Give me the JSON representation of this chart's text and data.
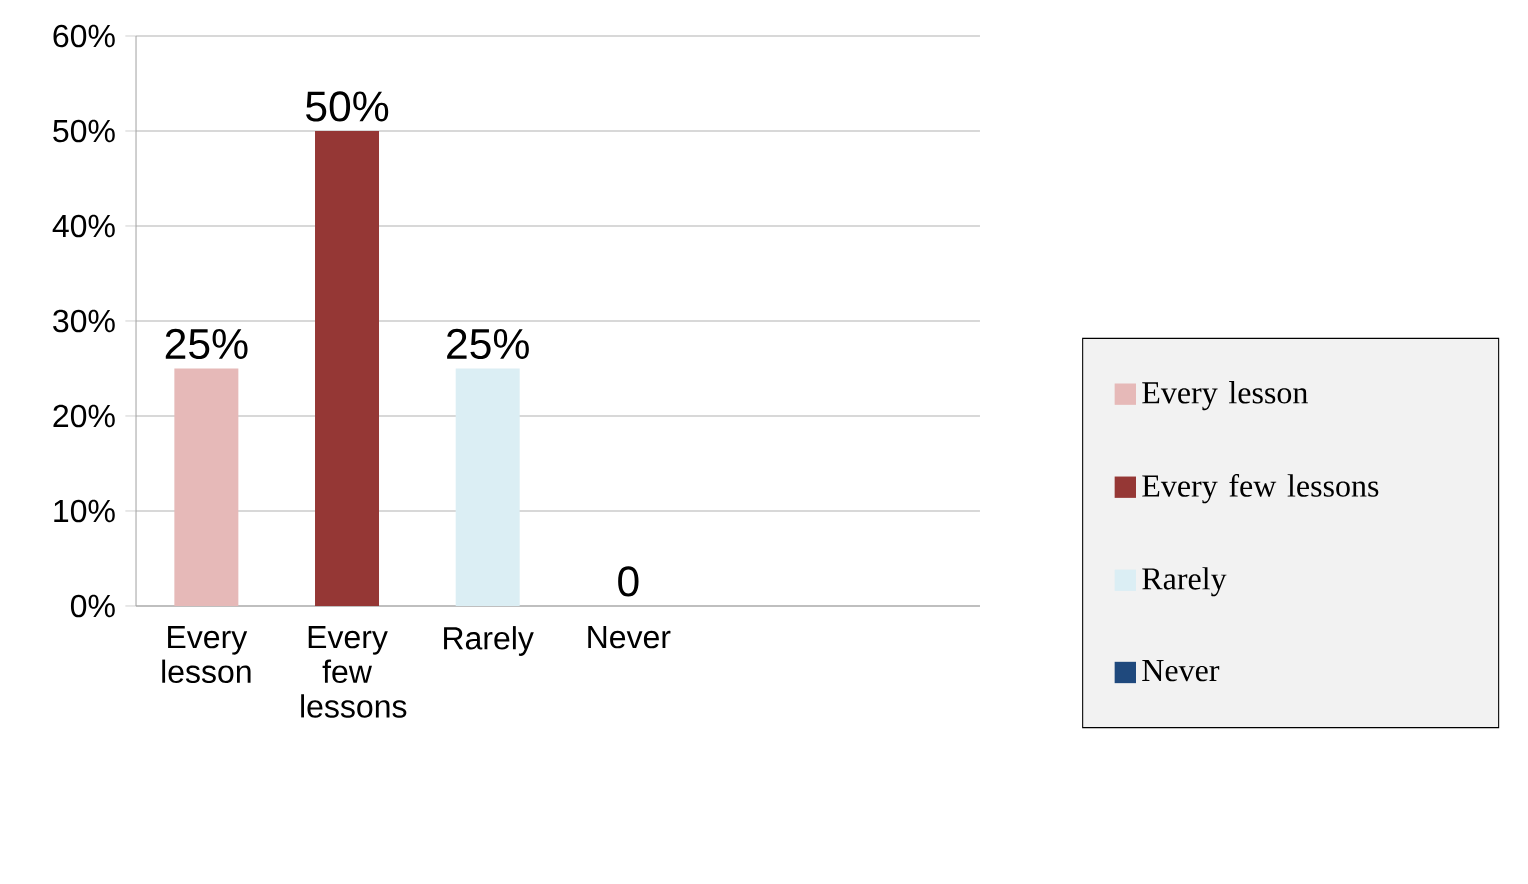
{
  "chart_data": {
    "type": "bar",
    "categories": [
      "Every lesson",
      "Every few lessons",
      "Rarely",
      "Never",
      null,
      null
    ],
    "series": [
      {
        "name": "Every lesson",
        "color": "#e6b9b8",
        "values": [
          25,
          null,
          null,
          null,
          null,
          null
        ],
        "value_labels": [
          "25%",
          null,
          null,
          null,
          null,
          null
        ]
      },
      {
        "name": "Every few lessons",
        "color": "#953735",
        "values": [
          null,
          50,
          null,
          null,
          null,
          null
        ],
        "value_labels": [
          null,
          "50%",
          null,
          null,
          null,
          null
        ]
      },
      {
        "name": "Rarely",
        "color": "#dbeef4",
        "values": [
          null,
          null,
          25,
          null,
          null,
          null
        ],
        "value_labels": [
          null,
          null,
          "25%",
          null,
          null,
          null
        ]
      },
      {
        "name": "Never",
        "color": "#1f497d",
        "values": [
          null,
          null,
          null,
          0,
          null,
          null
        ],
        "value_labels": [
          null,
          null,
          null,
          "0",
          null,
          null
        ]
      }
    ],
    "ylim": [
      0,
      60
    ],
    "yticks": [
      {
        "value": 0,
        "label": "0%"
      },
      {
        "value": 10,
        "label": "10%"
      },
      {
        "value": 20,
        "label": "20%"
      },
      {
        "value": 30,
        "label": "30%"
      },
      {
        "value": 40,
        "label": "40%"
      },
      {
        "value": 50,
        "label": "50%"
      },
      {
        "value": 60,
        "label": "60%"
      }
    ],
    "grid": "y",
    "legend": "right"
  }
}
